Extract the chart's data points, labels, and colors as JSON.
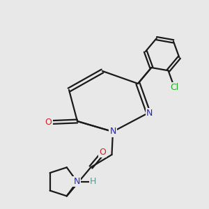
{
  "background_color": "#e8e8e8",
  "bond_color": "#1a1a1a",
  "atom_colors": {
    "N": "#2222cc",
    "O": "#cc2222",
    "Cl": "#22aa22",
    "H": "#559999",
    "C": "#1a1a1a"
  },
  "figsize": [
    3.0,
    3.0
  ],
  "dpi": 100
}
